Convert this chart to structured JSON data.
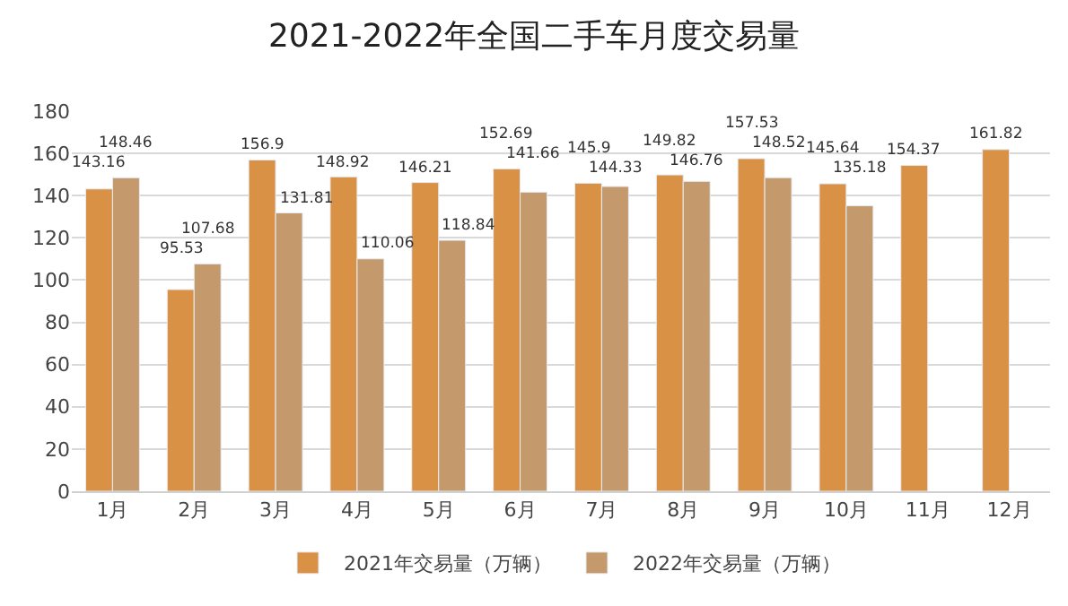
{
  "chart_data": {
    "type": "bar",
    "title": "2021-2022年全国二手车月度交易量",
    "categories": [
      "1月",
      "2月",
      "3月",
      "4月",
      "5月",
      "6月",
      "7月",
      "8月",
      "9月",
      "10月",
      "11月",
      "12月"
    ],
    "series": [
      {
        "name": "2021年交易量（万辆）",
        "color": "#d99146",
        "values": [
          143.16,
          95.53,
          156.9,
          148.92,
          146.21,
          152.69,
          145.9,
          149.82,
          157.53,
          145.64,
          154.37,
          161.82
        ]
      },
      {
        "name": "2022年交易量（万辆）",
        "color": "#c49a6c",
        "values": [
          148.46,
          107.68,
          131.81,
          110.06,
          118.84,
          141.66,
          144.33,
          146.76,
          148.52,
          135.18,
          null,
          null
        ]
      }
    ],
    "ylim": [
      0,
      180
    ],
    "yticks": [
      0,
      20,
      40,
      60,
      80,
      100,
      120,
      140,
      160,
      180
    ],
    "grid": "y",
    "legend": "bottom",
    "data_labels": true
  }
}
